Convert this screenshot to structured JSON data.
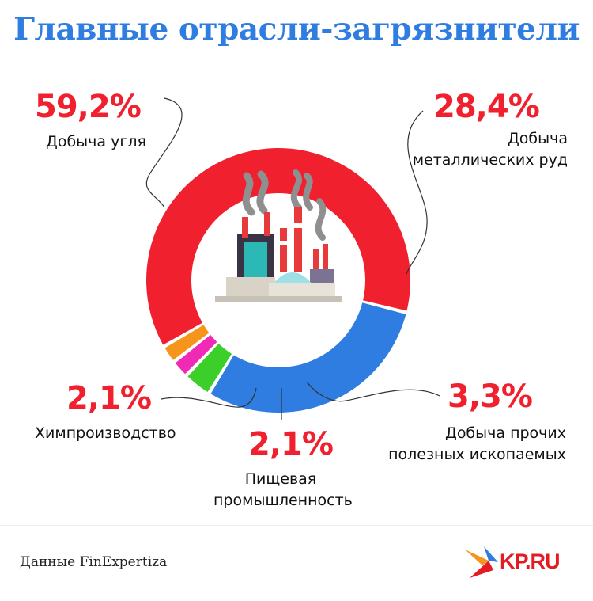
{
  "title": "Главные отрасли-загрязнители",
  "source": "Данные FinExpertiza",
  "logo": {
    "text": "KP.RU"
  },
  "chart_data": {
    "type": "pie",
    "donut": true,
    "title": "Главные отрасли-загрязнители",
    "slices": [
      {
        "label": "Добыча угля",
        "value": 59.2,
        "value_label": "59,2%",
        "color": "#f0202e"
      },
      {
        "label": "Добыча\nметаллических руд",
        "value": 28.4,
        "value_label": "28,4%",
        "color": "#2f7de1"
      },
      {
        "label": "Добыча прочих\nполезных ископаемых",
        "value": 3.3,
        "value_label": "3,3%",
        "color": "#3ccf2a"
      },
      {
        "label": "Пищевая\nпромышленность",
        "value": 2.1,
        "value_label": "2,1%",
        "color": "#f02ab4"
      },
      {
        "label": "Химпроизводство",
        "value": 2.1,
        "value_label": "2,1%",
        "color": "#f5951b"
      }
    ]
  }
}
